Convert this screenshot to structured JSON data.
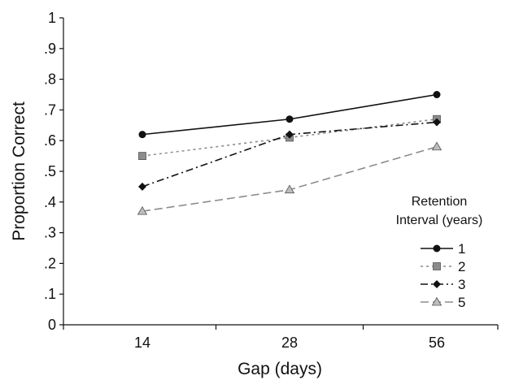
{
  "chart_data": {
    "type": "line",
    "title": "",
    "xlabel": "Gap (days)",
    "ylabel": "Proportion Correct",
    "categories": [
      "14",
      "28",
      "56"
    ],
    "ylim": [
      0,
      1
    ],
    "yticks": [
      "0",
      ".1",
      ".2",
      ".3",
      ".4",
      ".5",
      ".6",
      ".7",
      ".8",
      ".9",
      "1"
    ],
    "grid": false,
    "legend": {
      "title_line1": "Retention",
      "title_line2": "Interval (years)",
      "placement": "right"
    },
    "series": [
      {
        "name": "1",
        "values": [
          0.62,
          0.67,
          0.75
        ],
        "color": "#111111",
        "marker": "circle",
        "line": "solid"
      },
      {
        "name": "2",
        "values": [
          0.55,
          0.61,
          0.67
        ],
        "color": "#8c8c8c",
        "marker": "square",
        "line": "dotted"
      },
      {
        "name": "3",
        "values": [
          0.45,
          0.62,
          0.66
        ],
        "color": "#111111",
        "marker": "diamond",
        "line": "dashdot"
      },
      {
        "name": "5",
        "values": [
          0.37,
          0.44,
          0.58
        ],
        "color": "#8c8c8c",
        "marker": "triangle",
        "line": "dashed"
      }
    ]
  }
}
